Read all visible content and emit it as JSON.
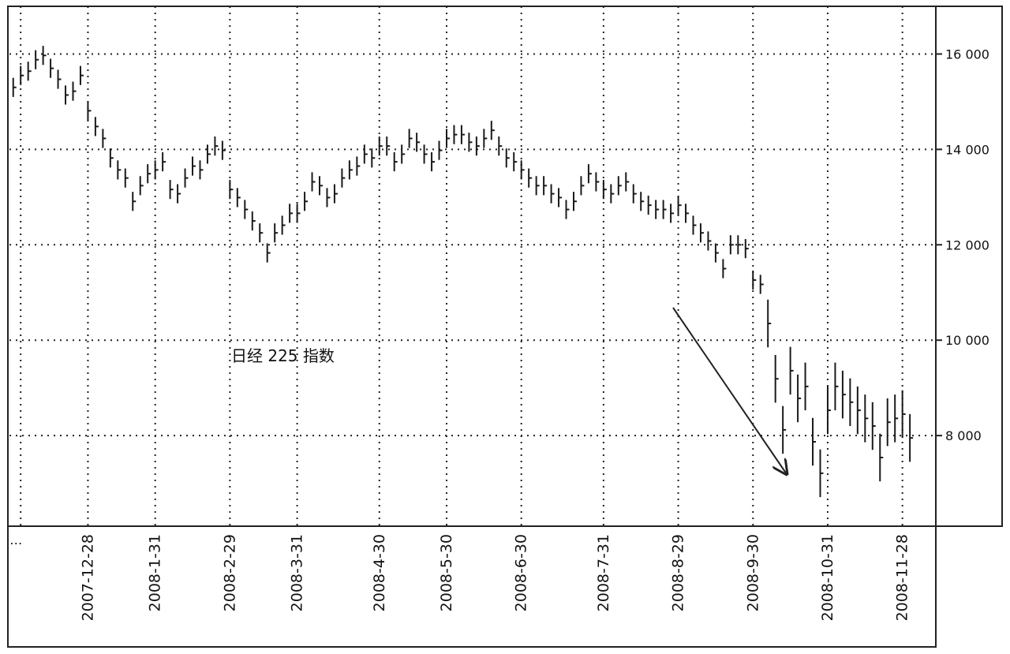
{
  "chart_data": {
    "type": "hlc",
    "annotation": "日经 225 指数",
    "color": "#1a1a1a",
    "grid": true,
    "categories": [
      null,
      "…",
      null,
      null,
      null,
      null,
      null,
      null,
      null,
      null,
      "2007-12-28",
      null,
      null,
      null,
      null,
      null,
      null,
      null,
      null,
      "2008-1-31",
      null,
      null,
      null,
      null,
      null,
      null,
      null,
      null,
      null,
      "2008-2-29",
      null,
      null,
      null,
      null,
      null,
      null,
      null,
      null,
      "2008-3-31",
      null,
      null,
      null,
      null,
      null,
      null,
      null,
      null,
      null,
      null,
      "2008-4-30",
      null,
      null,
      null,
      null,
      null,
      null,
      null,
      null,
      "2008-5-30",
      null,
      null,
      null,
      null,
      null,
      null,
      null,
      null,
      null,
      "2008-6-30",
      null,
      null,
      null,
      null,
      null,
      null,
      null,
      null,
      null,
      null,
      "2008-7-31",
      null,
      null,
      null,
      null,
      null,
      null,
      null,
      null,
      null,
      "2008-8-29",
      null,
      null,
      null,
      null,
      null,
      null,
      null,
      null,
      null,
      "2008-9-30",
      null,
      null,
      null,
      null,
      null,
      null,
      null,
      null,
      null,
      "2008-10-31",
      null,
      null,
      null,
      null,
      null,
      null,
      null,
      null,
      null,
      "2008-11-28",
      null
    ],
    "high": [
      15500,
      15750,
      15840,
      16080,
      16170,
      15900,
      15670,
      15340,
      15420,
      15750,
      15010,
      14680,
      14430,
      14020,
      13770,
      13600,
      13110,
      13440,
      13690,
      13770,
      13940,
      13360,
      13270,
      13600,
      13850,
      13770,
      14100,
      14270,
      14180,
      13360,
      13190,
      12940,
      12700,
      12450,
      12030,
      12450,
      12610,
      12860,
      12860,
      13110,
      13520,
      13440,
      13190,
      13270,
      13600,
      13770,
      13850,
      14100,
      14020,
      14270,
      14270,
      13940,
      14100,
      14430,
      14350,
      14100,
      13940,
      14180,
      14430,
      14510,
      14510,
      14350,
      14270,
      14430,
      14600,
      14270,
      14020,
      13940,
      13770,
      13600,
      13440,
      13440,
      13270,
      13190,
      12940,
      13110,
      13440,
      13690,
      13520,
      13360,
      13270,
      13440,
      13520,
      13270,
      13110,
      13030,
      12940,
      12940,
      12860,
      13030,
      12860,
      12610,
      12450,
      12280,
      12030,
      11700,
      12200,
      12200,
      12120,
      11460,
      11370,
      10850,
      9690,
      8620,
      9860,
      9280,
      9530,
      8370,
      7710,
      9030,
      9530,
      9360,
      9200,
      9030,
      8860,
      8700,
      8040,
      8780,
      8860,
      8950,
      8450
    ],
    "low": [
      15100,
      15350,
      15440,
      15680,
      15770,
      15500,
      15270,
      14940,
      15020,
      15350,
      14610,
      14280,
      14030,
      13620,
      13370,
      13200,
      12710,
      13040,
      13290,
      13370,
      13540,
      12960,
      12870,
      13200,
      13450,
      13370,
      13700,
      13870,
      13780,
      12960,
      12790,
      12540,
      12300,
      12050,
      11630,
      12050,
      12210,
      12460,
      12460,
      12710,
      13120,
      13040,
      12790,
      12870,
      13200,
      13370,
      13450,
      13700,
      13620,
      13870,
      13870,
      13540,
      13700,
      14030,
      13950,
      13700,
      13540,
      13780,
      14030,
      14110,
      14110,
      13950,
      13870,
      14030,
      14200,
      13870,
      13620,
      13540,
      13370,
      13200,
      13040,
      13040,
      12870,
      12790,
      12540,
      12710,
      13040,
      13290,
      13120,
      12960,
      12870,
      13040,
      13120,
      12870,
      12710,
      12630,
      12540,
      12540,
      12460,
      12630,
      12460,
      12210,
      12050,
      11880,
      11630,
      11300,
      11800,
      11800,
      11720,
      11060,
      10970,
      9850,
      8690,
      7620,
      8860,
      8280,
      8530,
      7370,
      6710,
      8030,
      8530,
      8360,
      8200,
      8030,
      7860,
      7700,
      7040,
      7780,
      7860,
      7950,
      7450
    ],
    "close": [
      15300,
      15550,
      15640,
      15880,
      15970,
      15700,
      15470,
      15140,
      15220,
      15550,
      14810,
      14480,
      14230,
      13820,
      13570,
      13400,
      12910,
      13240,
      13490,
      13570,
      13740,
      13160,
      13070,
      13400,
      13650,
      13570,
      13900,
      14070,
      13980,
      13160,
      12990,
      12740,
      12500,
      12250,
      11830,
      12250,
      12410,
      12660,
      12660,
      12910,
      13320,
      13240,
      12990,
      13070,
      13400,
      13570,
      13650,
      13900,
      13820,
      14070,
      14070,
      13740,
      13900,
      14230,
      14150,
      13900,
      13740,
      13980,
      14230,
      14310,
      14310,
      14150,
      14070,
      14230,
      14400,
      14070,
      13820,
      13740,
      13570,
      13400,
      13240,
      13240,
      13070,
      12990,
      12740,
      12910,
      13240,
      13490,
      13320,
      13160,
      13070,
      13240,
      13320,
      13070,
      12910,
      12830,
      12740,
      12740,
      12660,
      12830,
      12660,
      12410,
      12250,
      12080,
      11830,
      11500,
      12000,
      12000,
      11920,
      11260,
      11170,
      10350,
      9190,
      8120,
      9360,
      8780,
      9030,
      7870,
      7210,
      8530,
      9030,
      8860,
      8700,
      8530,
      8360,
      8200,
      7540,
      8280,
      8360,
      8450,
      7950
    ],
    "ylim": [
      6100,
      17000
    ],
    "yticks": [
      {
        "value": 8000,
        "label": "8 000"
      },
      {
        "value": 10000,
        "label": "10 000"
      },
      {
        "value": 12000,
        "label": "12 000"
      },
      {
        "value": 14000,
        "label": "14 000"
      },
      {
        "value": 16000,
        "label": "16 000"
      }
    ]
  }
}
